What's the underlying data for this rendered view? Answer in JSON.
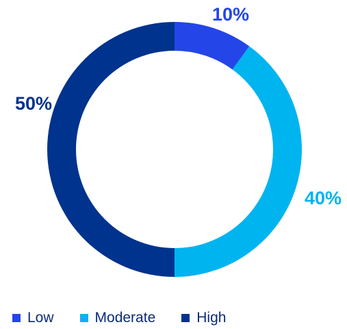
{
  "chart_data": {
    "type": "pie",
    "variant": "donut",
    "categories": [
      "Low",
      "Moderate",
      "High"
    ],
    "values": [
      10,
      40,
      50
    ],
    "labels": [
      "10%",
      "40%",
      "50%"
    ],
    "colors": [
      "#2446e8",
      "#00b4f0",
      "#00338d"
    ],
    "legend_position": "bottom-left"
  }
}
